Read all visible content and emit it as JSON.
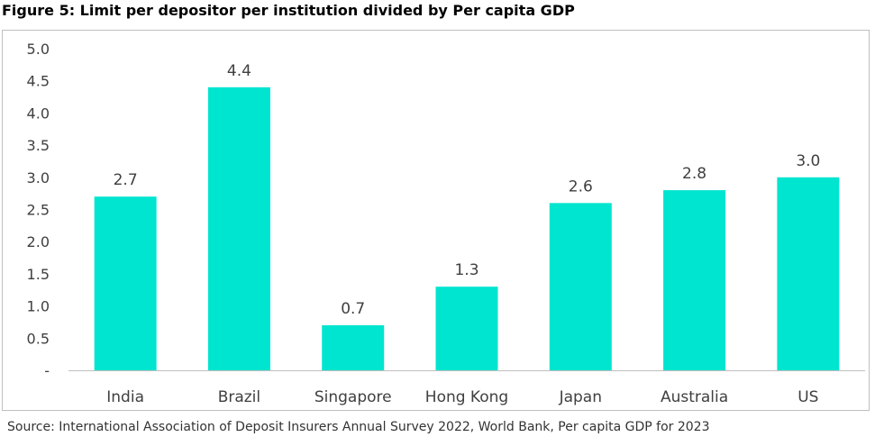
{
  "title": "Figure 5: Limit per depositor per institution divided by Per capita GDP",
  "source": "Source:  International Association of Deposit Insurers Annual Survey 2022, World Bank, Per capita GDP for 2023",
  "bar_color": "#00e5cf",
  "chart_data": {
    "type": "bar",
    "title": "",
    "xlabel": "",
    "ylabel": "",
    "categories": [
      "India",
      "Brazil",
      "Singapore",
      "Hong Kong",
      "Japan",
      "Australia",
      "US"
    ],
    "values": [
      2.7,
      4.4,
      0.7,
      1.3,
      2.6,
      2.8,
      3.0
    ],
    "data_labels": [
      "2.7",
      "4.4",
      "0.7",
      "1.3",
      "2.6",
      "2.8",
      "3.0"
    ],
    "ylim": [
      0,
      5
    ],
    "y_ticks": [
      0,
      0.5,
      1.0,
      1.5,
      2.0,
      2.5,
      3.0,
      3.5,
      4.0,
      4.5,
      5.0
    ],
    "y_tick_labels": [
      "-",
      "0.5",
      "1.0",
      "1.5",
      "2.0",
      "2.5",
      "3.0",
      "3.5",
      "4.0",
      "4.5",
      "5.0"
    ],
    "grid": false,
    "legend": "none"
  }
}
